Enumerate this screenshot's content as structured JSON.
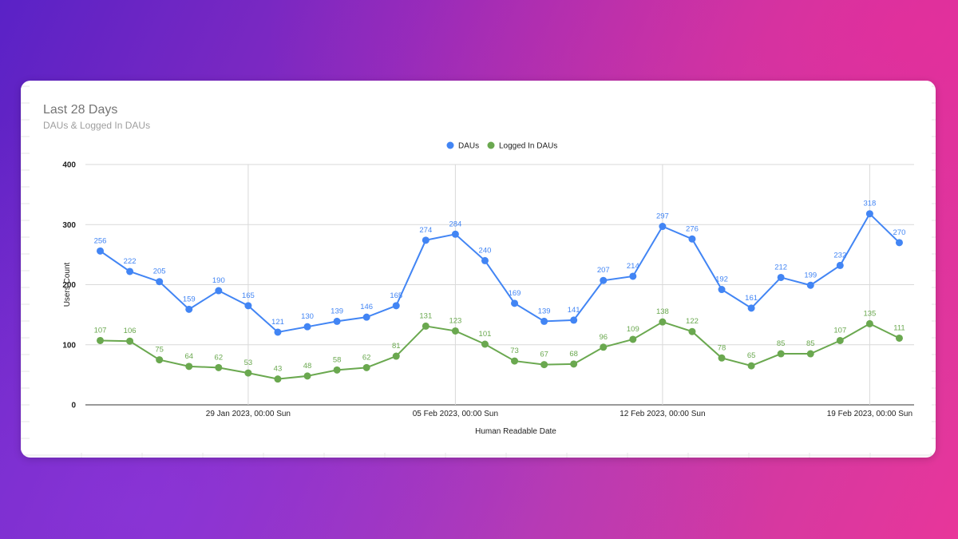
{
  "chart_data": {
    "type": "line",
    "title": "Last 28 Days",
    "subtitle": "DAUs & Logged In DAUs",
    "xlabel": "Human Readable Date",
    "ylabel": "Users Count",
    "ylim": [
      0,
      400
    ],
    "yticks": [
      0,
      100,
      200,
      300,
      400
    ],
    "x_tick_labels": [
      "29 Jan 2023, 00:00 Sun",
      "05 Feb 2023, 00:00 Sun",
      "12 Feb 2023, 00:00 Sun",
      "19 Feb 2023, 00:00 Sun"
    ],
    "x_tick_indices": [
      5,
      12,
      19,
      26
    ],
    "grid": true,
    "legend_position": "top",
    "series": [
      {
        "name": "DAUs",
        "color": "#4285f4",
        "values": [
          256,
          222,
          205,
          159,
          190,
          165,
          121,
          130,
          139,
          146,
          165,
          274,
          284,
          240,
          169,
          139,
          141,
          207,
          214,
          297,
          276,
          192,
          161,
          212,
          199,
          232,
          318,
          270
        ]
      },
      {
        "name": "Logged In DAUs",
        "color": "#6aa84f",
        "values": [
          107,
          106,
          75,
          64,
          62,
          53,
          43,
          48,
          58,
          62,
          81,
          131,
          123,
          101,
          73,
          67,
          68,
          96,
          109,
          138,
          122,
          78,
          65,
          85,
          85,
          107,
          135,
          111
        ]
      }
    ]
  }
}
